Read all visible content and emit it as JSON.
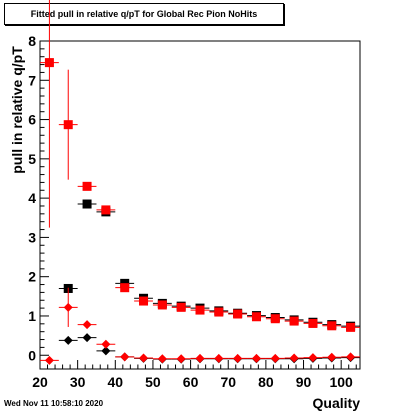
{
  "chart_data": {
    "type": "scatter",
    "title": "Fitted pull in relative q/pT for Global Rec Pion NoHits",
    "xlabel": "Quality",
    "ylabel": "pull in relative q/pT",
    "xlim": [
      20,
      105
    ],
    "ylim": [
      -0.35,
      8
    ],
    "xticks": [
      20,
      30,
      40,
      50,
      60,
      70,
      80,
      90,
      100
    ],
    "yticks": [
      0,
      1,
      2,
      3,
      4,
      5,
      6,
      7,
      8
    ],
    "grid": false,
    "timestamp": "Wed Nov 11 10:58:10 2020",
    "series": [
      {
        "marker": "square",
        "color": "#000000",
        "points": [
          {
            "x": 27.5,
            "y": 1.7,
            "err": 0.07
          },
          {
            "x": 32.5,
            "y": 3.85,
            "err": 0.1
          },
          {
            "x": 37.5,
            "y": 3.65,
            "err": 0.07
          },
          {
            "x": 42.5,
            "y": 1.83,
            "err": 0.05
          },
          {
            "x": 47.5,
            "y": 1.45,
            "err": 0.04
          },
          {
            "x": 52.5,
            "y": 1.32,
            "err": 0.04
          },
          {
            "x": 57.5,
            "y": 1.25,
            "err": 0.04
          },
          {
            "x": 62.5,
            "y": 1.2,
            "err": 0.04
          },
          {
            "x": 67.5,
            "y": 1.13,
            "err": 0.04
          },
          {
            "x": 72.5,
            "y": 1.07,
            "err": 0.04
          },
          {
            "x": 77.5,
            "y": 1.01,
            "err": 0.04
          },
          {
            "x": 82.5,
            "y": 0.96,
            "err": 0.04
          },
          {
            "x": 87.5,
            "y": 0.9,
            "err": 0.04
          },
          {
            "x": 92.5,
            "y": 0.84,
            "err": 0.04
          },
          {
            "x": 97.5,
            "y": 0.78,
            "err": 0.04
          },
          {
            "x": 102.5,
            "y": 0.74,
            "err": 0.04
          }
        ]
      },
      {
        "marker": "square",
        "color": "#ff0000",
        "points": [
          {
            "x": 22.5,
            "y": 7.45,
            "err": 4.2
          },
          {
            "x": 27.5,
            "y": 5.87,
            "err": 1.4
          },
          {
            "x": 32.5,
            "y": 4.3,
            "err": 0.1
          },
          {
            "x": 37.5,
            "y": 3.7,
            "err": 0.07
          },
          {
            "x": 42.5,
            "y": 1.72,
            "err": 0.05
          },
          {
            "x": 47.5,
            "y": 1.38,
            "err": 0.04
          },
          {
            "x": 52.5,
            "y": 1.28,
            "err": 0.04
          },
          {
            "x": 57.5,
            "y": 1.22,
            "err": 0.04
          },
          {
            "x": 62.5,
            "y": 1.15,
            "err": 0.04
          },
          {
            "x": 67.5,
            "y": 1.1,
            "err": 0.04
          },
          {
            "x": 72.5,
            "y": 1.05,
            "err": 0.04
          },
          {
            "x": 77.5,
            "y": 0.98,
            "err": 0.04
          },
          {
            "x": 82.5,
            "y": 0.93,
            "err": 0.04
          },
          {
            "x": 87.5,
            "y": 0.87,
            "err": 0.04
          },
          {
            "x": 92.5,
            "y": 0.81,
            "err": 0.04
          },
          {
            "x": 97.5,
            "y": 0.75,
            "err": 0.04
          },
          {
            "x": 102.5,
            "y": 0.71,
            "err": 0.04
          }
        ]
      },
      {
        "marker": "diamond",
        "color": "#000000",
        "points": [
          {
            "x": 27.5,
            "y": 0.38,
            "err": 0.05
          },
          {
            "x": 32.5,
            "y": 0.45,
            "err": 0.05
          },
          {
            "x": 37.5,
            "y": 0.11,
            "err": 0.03
          },
          {
            "x": 42.5,
            "y": -0.04,
            "err": 0.02
          },
          {
            "x": 47.5,
            "y": -0.08,
            "err": 0.02
          },
          {
            "x": 52.5,
            "y": -0.1,
            "err": 0.02
          },
          {
            "x": 57.5,
            "y": -0.1,
            "err": 0.02
          },
          {
            "x": 62.5,
            "y": -0.09,
            "err": 0.02
          },
          {
            "x": 67.5,
            "y": -0.09,
            "err": 0.02
          },
          {
            "x": 72.5,
            "y": -0.09,
            "err": 0.02
          },
          {
            "x": 77.5,
            "y": -0.09,
            "err": 0.02
          },
          {
            "x": 82.5,
            "y": -0.09,
            "err": 0.02
          },
          {
            "x": 87.5,
            "y": -0.09,
            "err": 0.02
          },
          {
            "x": 92.5,
            "y": -0.08,
            "err": 0.02
          },
          {
            "x": 97.5,
            "y": -0.07,
            "err": 0.02
          },
          {
            "x": 102.5,
            "y": -0.06,
            "err": 0.02
          }
        ]
      },
      {
        "marker": "diamond",
        "color": "#ff0000",
        "points": [
          {
            "x": 22.5,
            "y": -0.13,
            "err": 0.05
          },
          {
            "x": 27.5,
            "y": 1.22,
            "err": 0.5
          },
          {
            "x": 32.5,
            "y": 0.78,
            "err": 0.06
          },
          {
            "x": 37.5,
            "y": 0.28,
            "err": 0.03
          },
          {
            "x": 42.5,
            "y": -0.04,
            "err": 0.02
          },
          {
            "x": 47.5,
            "y": -0.07,
            "err": 0.02
          },
          {
            "x": 52.5,
            "y": -0.09,
            "err": 0.02
          },
          {
            "x": 57.5,
            "y": -0.09,
            "err": 0.02
          },
          {
            "x": 62.5,
            "y": -0.08,
            "err": 0.02
          },
          {
            "x": 67.5,
            "y": -0.08,
            "err": 0.02
          },
          {
            "x": 72.5,
            "y": -0.08,
            "err": 0.02
          },
          {
            "x": 77.5,
            "y": -0.08,
            "err": 0.02
          },
          {
            "x": 82.5,
            "y": -0.08,
            "err": 0.02
          },
          {
            "x": 87.5,
            "y": -0.07,
            "err": 0.02
          },
          {
            "x": 92.5,
            "y": -0.06,
            "err": 0.02
          },
          {
            "x": 97.5,
            "y": -0.05,
            "err": 0.02
          },
          {
            "x": 102.5,
            "y": -0.04,
            "err": 0.02
          }
        ]
      }
    ]
  }
}
